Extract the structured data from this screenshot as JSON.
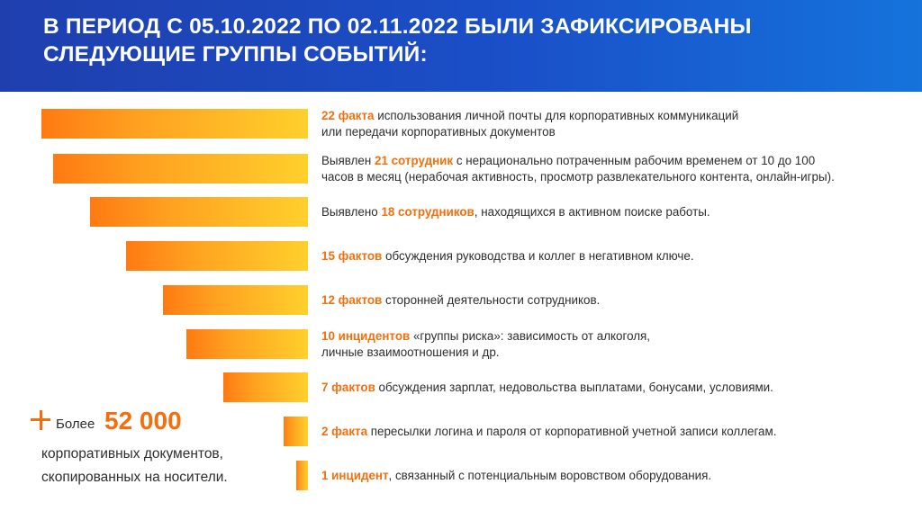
{
  "header": {
    "title_line1": "В ПЕРИОД С 05.10.2022 ПО 02.11.2022 БЫЛИ ЗАФИКСИРОВАНЫ",
    "title_line2": "СЛЕДУЮЩИЕ ГРУППЫ СОБЫТИЙ:"
  },
  "colors": {
    "header": "#1a4fc8",
    "accent": "#f36f0e",
    "bar_start": "#ff7a12",
    "bar_end": "#ffd02c"
  },
  "chart_data": {
    "type": "bar",
    "orientation": "horizontal",
    "values": [
      22,
      21,
      18,
      15,
      12,
      10,
      7,
      2,
      1
    ],
    "items": [
      {
        "highlight": "22 факта",
        "before": "",
        "after": " использования личной почты для корпоративных коммуникаций",
        "line2": "или передачи корпоративных документов"
      },
      {
        "highlight": "21 сотрудник",
        "before": "Выявлен ",
        "after": " с нерационально потраченным рабочим временем от 10 до 100",
        "line2": "часов в месяц (нерабочая активность, просмотр развлекательного контента, онлайн-игры)."
      },
      {
        "highlight": "18 сотрудников",
        "before": "Выявлено ",
        "after": ", находящихся в активном поиске работы.",
        "line2": ""
      },
      {
        "highlight": "15 фактов",
        "before": "",
        "after": " обсуждения руководства и коллег в негативном ключе.",
        "line2": ""
      },
      {
        "highlight": "12 фактов",
        "before": "",
        "after": " сторонней деятельности  сотрудников.",
        "line2": ""
      },
      {
        "highlight": "10 инцидентов",
        "before": "",
        "after": " «группы риска»: зависимость от алкоголя,",
        "line2": "личные взаимоотношения и др."
      },
      {
        "highlight": "7 фактов",
        "before": "",
        "after": " обсуждения зарплат, недовольства выплатами, бонусами, условиями.",
        "line2": ""
      },
      {
        "highlight": "2 факта",
        "before": "",
        "after": " пересылки логина и пароля от корпоративной учетной записи коллегам.",
        "line2": ""
      },
      {
        "highlight": "1 инцидент",
        "before": "",
        "after": ", связанный с потенциальным воровством оборудования.",
        "line2": ""
      }
    ]
  },
  "note": {
    "icon": "plus-icon",
    "prefix": "Более",
    "value": "52 000",
    "text": "корпоративных документов, скопированных на носители."
  }
}
